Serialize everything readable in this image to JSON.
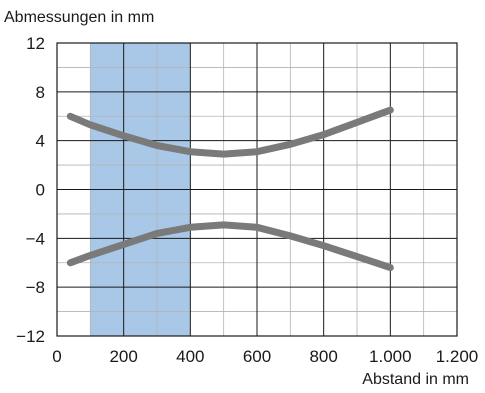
{
  "chart_data": {
    "type": "line",
    "ylabel": "Abmessungen in mm",
    "xlabel": "Abstand in mm",
    "x_ticks": [
      0,
      200,
      400,
      600,
      800,
      1000,
      1200
    ],
    "x_tick_labels": [
      "0",
      "200",
      "400",
      "600",
      "800",
      "1.000",
      "1.200"
    ],
    "y_ticks": [
      12,
      8,
      4,
      0,
      -4,
      -8,
      -12
    ],
    "y_tick_labels": [
      "12",
      "8",
      "4",
      "0",
      "−4",
      "−8",
      "−12"
    ],
    "xlim": [
      0,
      1200
    ],
    "ylim": [
      -12,
      12
    ],
    "grid": true,
    "highlight_band": {
      "x_start": 100,
      "x_end": 400,
      "color": "#a9c8e8"
    },
    "series": [
      {
        "values": [
          [
            40,
            6.0
          ],
          [
            100,
            5.3
          ],
          [
            200,
            4.4
          ],
          [
            300,
            3.6
          ],
          [
            400,
            3.1
          ],
          [
            500,
            2.9
          ],
          [
            600,
            3.1
          ],
          [
            700,
            3.7
          ],
          [
            800,
            4.5
          ],
          [
            900,
            5.5
          ],
          [
            1000,
            6.5
          ]
        ],
        "color": "#7a7a7a"
      },
      {
        "values": [
          [
            40,
            -6.0
          ],
          [
            100,
            -5.4
          ],
          [
            200,
            -4.5
          ],
          [
            300,
            -3.6
          ],
          [
            400,
            -3.1
          ],
          [
            500,
            -2.9
          ],
          [
            600,
            -3.1
          ],
          [
            700,
            -3.8
          ],
          [
            800,
            -4.6
          ],
          [
            900,
            -5.5
          ],
          [
            1000,
            -6.4
          ]
        ],
        "color": "#7a7a7a"
      }
    ]
  }
}
